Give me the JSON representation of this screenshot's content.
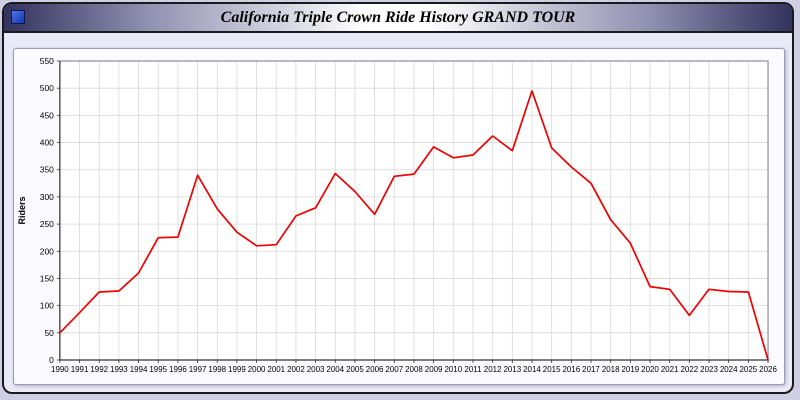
{
  "window": {
    "title": "California Triple Crown Ride History GRAND TOUR"
  },
  "colors": {
    "page_bg": "#e9e9f7",
    "titlebar_edge": "#32325e",
    "titlebar_center": "#ffffff",
    "window_icon_blue": "#2244cc",
    "panel_bg": "#fbfbff",
    "plot_bg": "#ffffff",
    "grid": "#d8d8d8",
    "axis": "#333333",
    "line": "#ee0000"
  },
  "chart_data": {
    "type": "line",
    "title": "California Triple Crown Ride History GRAND TOUR",
    "xlabel": "",
    "ylabel": "Riders",
    "ylim": [
      0,
      550
    ],
    "ytick_step": 50,
    "grid": true,
    "legend_position": "none",
    "x": [
      1990,
      1991,
      1992,
      1993,
      1994,
      1995,
      1996,
      1997,
      1998,
      1999,
      2000,
      2001,
      2002,
      2003,
      2004,
      2005,
      2006,
      2007,
      2008,
      2009,
      2010,
      2011,
      2012,
      2013,
      2014,
      2015,
      2016,
      2017,
      2018,
      2019,
      2020,
      2021,
      2022,
      2023,
      2024,
      2025,
      2026
    ],
    "series": [
      {
        "name": "Riders",
        "color": "#ee0000",
        "values": [
          50,
          87,
          125,
          127,
          160,
          225,
          226,
          340,
          278,
          235,
          210,
          212,
          265,
          280,
          343,
          310,
          268,
          338,
          342,
          392,
          372,
          377,
          412,
          385,
          495,
          390,
          355,
          325,
          258,
          215,
          135,
          130,
          82,
          130,
          126,
          125,
          0
        ]
      }
    ]
  }
}
